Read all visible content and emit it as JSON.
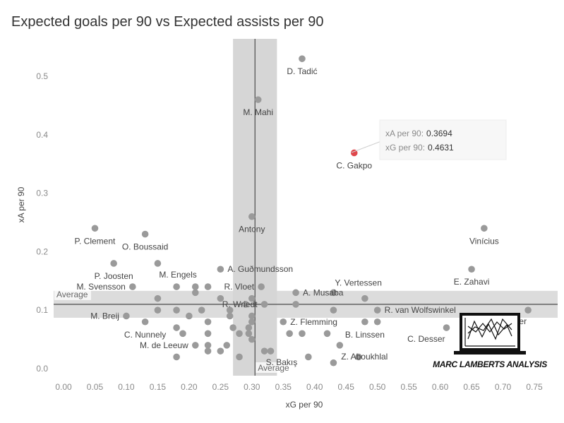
{
  "title": "Expected goals per 90 vs Expected assists per 90",
  "chart_data": {
    "type": "scatter",
    "title": "Expected goals per 90 vs Expected assists per 90",
    "xlabel": "xG per 90",
    "ylabel": "xA per 90",
    "xlim": [
      -0.02,
      0.78
    ],
    "ylim": [
      -0.01,
      0.56
    ],
    "xticks": [
      "0.00",
      "0.05",
      "0.10",
      "0.15",
      "0.20",
      "0.25",
      "0.30",
      "0.35",
      "0.40",
      "0.45",
      "0.50",
      "0.55",
      "0.60",
      "0.65",
      "0.70",
      "0.75"
    ],
    "xtick_values": [
      0,
      0.05,
      0.1,
      0.15,
      0.2,
      0.25,
      0.3,
      0.35,
      0.4,
      0.45,
      0.5,
      0.55,
      0.6,
      0.65,
      0.7,
      0.75
    ],
    "yticks": [
      "0.0",
      "0.1",
      "0.2",
      "0.3",
      "0.4",
      "0.5"
    ],
    "ytick_values": [
      0,
      0.1,
      0.2,
      0.3,
      0.4,
      0.5
    ],
    "grid": false,
    "average": {
      "x": 0.305,
      "y": 0.11,
      "x_band": [
        0.27,
        0.34
      ],
      "y_band": [
        0.087,
        0.133
      ],
      "label": "Average"
    },
    "highlight_color": "#e0474c",
    "point_color": "#9a9a9a",
    "points": [
      {
        "x": 0.38,
        "y": 0.53,
        "label": "D. Tadić",
        "lp": "below"
      },
      {
        "x": 0.31,
        "y": 0.46,
        "label": "M. Mahi",
        "lp": "below"
      },
      {
        "x": 0.463,
        "y": 0.369,
        "label": "C. Gakpo",
        "lp": "below",
        "highlight": true
      },
      {
        "x": 0.3,
        "y": 0.26,
        "label": "Antony",
        "lp": "below"
      },
      {
        "x": 0.05,
        "y": 0.24,
        "label": "P. Clement",
        "lp": "below"
      },
      {
        "x": 0.13,
        "y": 0.23,
        "label": "O. Boussaid",
        "lp": "below"
      },
      {
        "x": 0.67,
        "y": 0.24,
        "label": "Vinícius",
        "lp": "below"
      },
      {
        "x": 0.08,
        "y": 0.18,
        "label": "P. Joosten",
        "lp": "below"
      },
      {
        "x": 0.15,
        "y": 0.18,
        "label": "M. Engels",
        "lp": "belowright"
      },
      {
        "x": 0.25,
        "y": 0.17,
        "label": "A. Guðmundsson",
        "lp": "right"
      },
      {
        "x": 0.65,
        "y": 0.17,
        "label": "E. Zahavi",
        "lp": "below"
      },
      {
        "x": 0.11,
        "y": 0.14,
        "label": "M. Svensson",
        "lp": "left"
      },
      {
        "x": 0.18,
        "y": 0.14
      },
      {
        "x": 0.21,
        "y": 0.14
      },
      {
        "x": 0.23,
        "y": 0.14
      },
      {
        "x": 0.315,
        "y": 0.14,
        "label": "R. Vloet",
        "lp": "left"
      },
      {
        "x": 0.43,
        "y": 0.13,
        "label": "Y. Vertessen",
        "lp": "aboveright"
      },
      {
        "x": 0.37,
        "y": 0.13,
        "label": "A. Musaba",
        "lp": "right"
      },
      {
        "x": 0.21,
        "y": 0.13
      },
      {
        "x": 0.15,
        "y": 0.12
      },
      {
        "x": 0.25,
        "y": 0.12
      },
      {
        "x": 0.48,
        "y": 0.12
      },
      {
        "x": 0.3,
        "y": 0.12
      },
      {
        "x": 0.32,
        "y": 0.11,
        "label": "R. Wriedt",
        "lp": "left"
      },
      {
        "x": 0.37,
        "y": 0.11
      },
      {
        "x": 0.29,
        "y": 0.11
      },
      {
        "x": 0.15,
        "y": 0.1
      },
      {
        "x": 0.18,
        "y": 0.1
      },
      {
        "x": 0.22,
        "y": 0.1
      },
      {
        "x": 0.265,
        "y": 0.1
      },
      {
        "x": 0.43,
        "y": 0.1
      },
      {
        "x": 0.5,
        "y": 0.1,
        "label": "R. van Wolfswinkel",
        "lp": "right"
      },
      {
        "x": 0.74,
        "y": 0.1,
        "label": "S. Haller",
        "lp": "belowleft"
      },
      {
        "x": 0.1,
        "y": 0.09,
        "label": "M. Breij",
        "lp": "left"
      },
      {
        "x": 0.2,
        "y": 0.09
      },
      {
        "x": 0.3,
        "y": 0.09
      },
      {
        "x": 0.265,
        "y": 0.09
      },
      {
        "x": 0.13,
        "y": 0.08,
        "label": "C. Nunnely",
        "lp": "below"
      },
      {
        "x": 0.23,
        "y": 0.08
      },
      {
        "x": 0.3,
        "y": 0.08
      },
      {
        "x": 0.35,
        "y": 0.08,
        "label": "Z. Flemming",
        "lp": "right"
      },
      {
        "x": 0.48,
        "y": 0.08,
        "label": "B. Linssen",
        "lp": "below"
      },
      {
        "x": 0.5,
        "y": 0.08
      },
      {
        "x": 0.18,
        "y": 0.07
      },
      {
        "x": 0.27,
        "y": 0.07
      },
      {
        "x": 0.295,
        "y": 0.07
      },
      {
        "x": 0.61,
        "y": 0.07,
        "label": "C. Desser",
        "lp": "belowleft"
      },
      {
        "x": 0.19,
        "y": 0.06
      },
      {
        "x": 0.23,
        "y": 0.06
      },
      {
        "x": 0.28,
        "y": 0.06
      },
      {
        "x": 0.295,
        "y": 0.06
      },
      {
        "x": 0.36,
        "y": 0.06
      },
      {
        "x": 0.38,
        "y": 0.06
      },
      {
        "x": 0.42,
        "y": 0.06
      },
      {
        "x": 0.3,
        "y": 0.05
      },
      {
        "x": 0.21,
        "y": 0.04,
        "label": "M. de Leeuw",
        "lp": "left"
      },
      {
        "x": 0.23,
        "y": 0.04
      },
      {
        "x": 0.26,
        "y": 0.04
      },
      {
        "x": 0.33,
        "y": 0.03
      },
      {
        "x": 0.44,
        "y": 0.04,
        "label": "Z. Aboukhlal",
        "lp": "belowright"
      },
      {
        "x": 0.23,
        "y": 0.03
      },
      {
        "x": 0.25,
        "y": 0.03
      },
      {
        "x": 0.32,
        "y": 0.03,
        "label": "S. Bakış",
        "lp": "belowright"
      },
      {
        "x": 0.18,
        "y": 0.02
      },
      {
        "x": 0.28,
        "y": 0.02
      },
      {
        "x": 0.39,
        "y": 0.02
      },
      {
        "x": 0.47,
        "y": 0.02
      },
      {
        "x": 0.43,
        "y": 0.01
      }
    ]
  },
  "tooltip": {
    "xa_key": "xA per 90:",
    "xa_val": "0.3694",
    "xg_key": "xG per 90:",
    "xg_val": "0.4631"
  },
  "logo": {
    "text": "MARC LAMBERTS ANALYSIS",
    "icon": "laptop-chart-icon"
  }
}
